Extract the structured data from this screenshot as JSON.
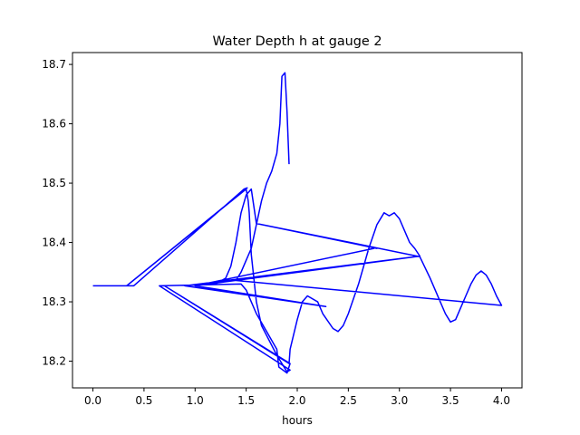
{
  "chart_data": {
    "type": "line",
    "title": "Water Depth h at gauge 2",
    "xlabel": "hours",
    "ylabel": "",
    "xlim": [
      -0.2,
      4.2
    ],
    "ylim": [
      18.155,
      18.72
    ],
    "xticks": [
      0.0,
      0.5,
      1.0,
      1.5,
      2.0,
      2.5,
      3.0,
      3.5,
      4.0
    ],
    "xtick_labels": [
      "0.0",
      "0.5",
      "1.0",
      "1.5",
      "2.0",
      "2.5",
      "3.0",
      "3.5",
      "4.0"
    ],
    "yticks": [
      18.2,
      18.3,
      18.4,
      18.5,
      18.6,
      18.7
    ],
    "ytick_labels": [
      "18.2",
      "18.3",
      "18.4",
      "18.5",
      "18.6",
      "18.7"
    ],
    "grid": false,
    "series": [
      {
        "color": "#0000ff",
        "x": [
          0.0,
          0.33,
          0.4,
          1.48,
          1.51,
          0.33,
          1.5,
          1.52,
          1.53,
          1.55,
          1.6,
          1.65,
          1.8,
          1.9,
          1.93,
          0.65,
          1.45,
          1.5,
          1.55,
          1.6,
          1.7,
          1.8,
          1.82,
          1.9,
          1.93,
          0.7,
          1.92,
          1.93,
          2.0,
          2.05,
          2.1,
          2.2,
          2.25,
          2.35,
          2.4,
          2.45,
          2.5,
          2.6,
          2.7,
          2.78,
          2.85,
          2.9,
          2.95,
          3.0,
          3.05,
          3.1,
          3.15,
          3.2,
          0.9,
          2.28,
          1.0,
          2.75,
          1.0,
          3.2,
          1.1,
          1.2,
          1.3,
          1.35,
          1.4,
          1.45,
          1.5,
          1.55,
          1.6,
          2.75,
          2.78,
          1.6,
          3.2,
          3.3,
          3.4,
          3.45,
          3.5,
          3.55,
          3.6,
          3.65,
          3.7,
          3.75,
          3.8,
          3.85,
          3.9,
          3.95,
          4.0,
          4.0,
          1.4,
          1.45,
          1.5,
          1.55,
          1.6,
          1.65,
          1.7,
          1.75,
          1.8,
          1.83,
          1.85,
          1.88,
          1.9,
          1.92
        ],
        "y": [
          18.327,
          18.327,
          18.327,
          18.49,
          18.492,
          18.327,
          18.49,
          18.47,
          18.45,
          18.38,
          18.3,
          18.26,
          18.21,
          18.182,
          18.185,
          18.327,
          18.33,
          18.32,
          18.3,
          18.28,
          18.25,
          18.22,
          18.19,
          18.18,
          18.196,
          18.327,
          18.196,
          18.22,
          18.27,
          18.3,
          18.31,
          18.3,
          18.28,
          18.255,
          18.25,
          18.26,
          18.28,
          18.33,
          18.39,
          18.43,
          18.45,
          18.445,
          18.45,
          18.44,
          18.42,
          18.4,
          18.39,
          18.377,
          18.327,
          18.292,
          18.327,
          18.39,
          18.327,
          18.377,
          18.33,
          18.33,
          18.34,
          18.36,
          18.4,
          18.45,
          18.48,
          18.49,
          18.432,
          18.392,
          18.39,
          18.432,
          18.376,
          18.34,
          18.3,
          18.28,
          18.266,
          18.27,
          18.29,
          18.31,
          18.33,
          18.345,
          18.352,
          18.345,
          18.33,
          18.31,
          18.294,
          18.294,
          18.336,
          18.35,
          18.37,
          18.39,
          18.43,
          18.47,
          18.5,
          18.52,
          18.55,
          18.6,
          18.68,
          18.686,
          18.62,
          18.532
        ]
      }
    ]
  }
}
